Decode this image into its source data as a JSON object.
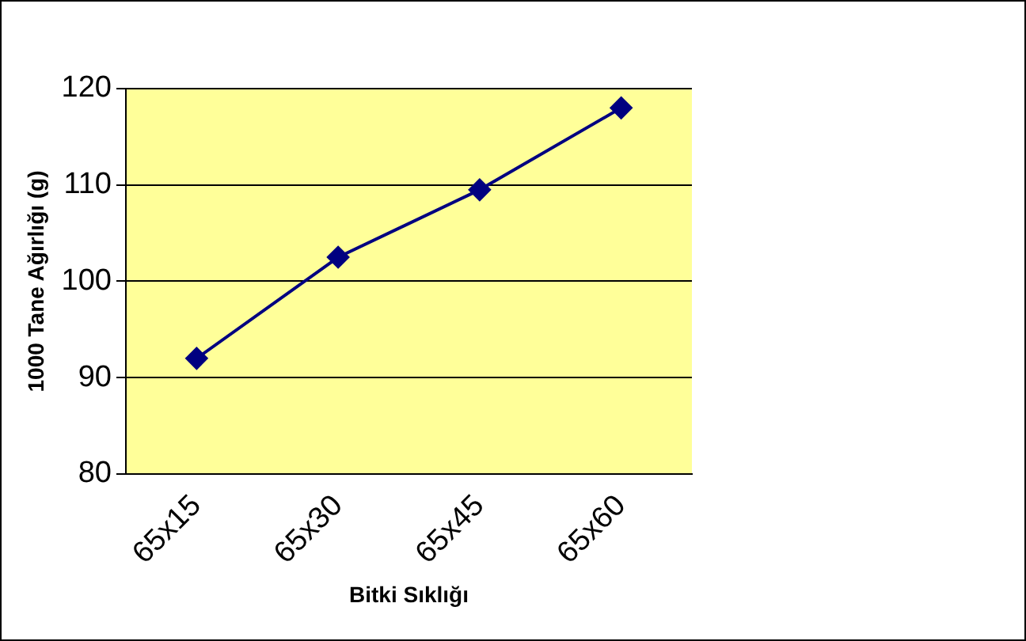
{
  "chart_data": {
    "type": "line",
    "xlabel": "Bitki Sıklığı",
    "ylabel": "1000 Tane Ağırlığı (g)",
    "categories": [
      "65x15",
      "65x30",
      "65x45",
      "65x60"
    ],
    "series": [
      {
        "color": "#000080",
        "values": [
          92,
          102.5,
          109.5,
          118
        ]
      }
    ],
    "ylim": [
      80,
      120
    ],
    "yticks": [
      80,
      90,
      100,
      110,
      120
    ],
    "grid": "y",
    "legend": false,
    "marker": "diamond",
    "line_style": "solid"
  }
}
